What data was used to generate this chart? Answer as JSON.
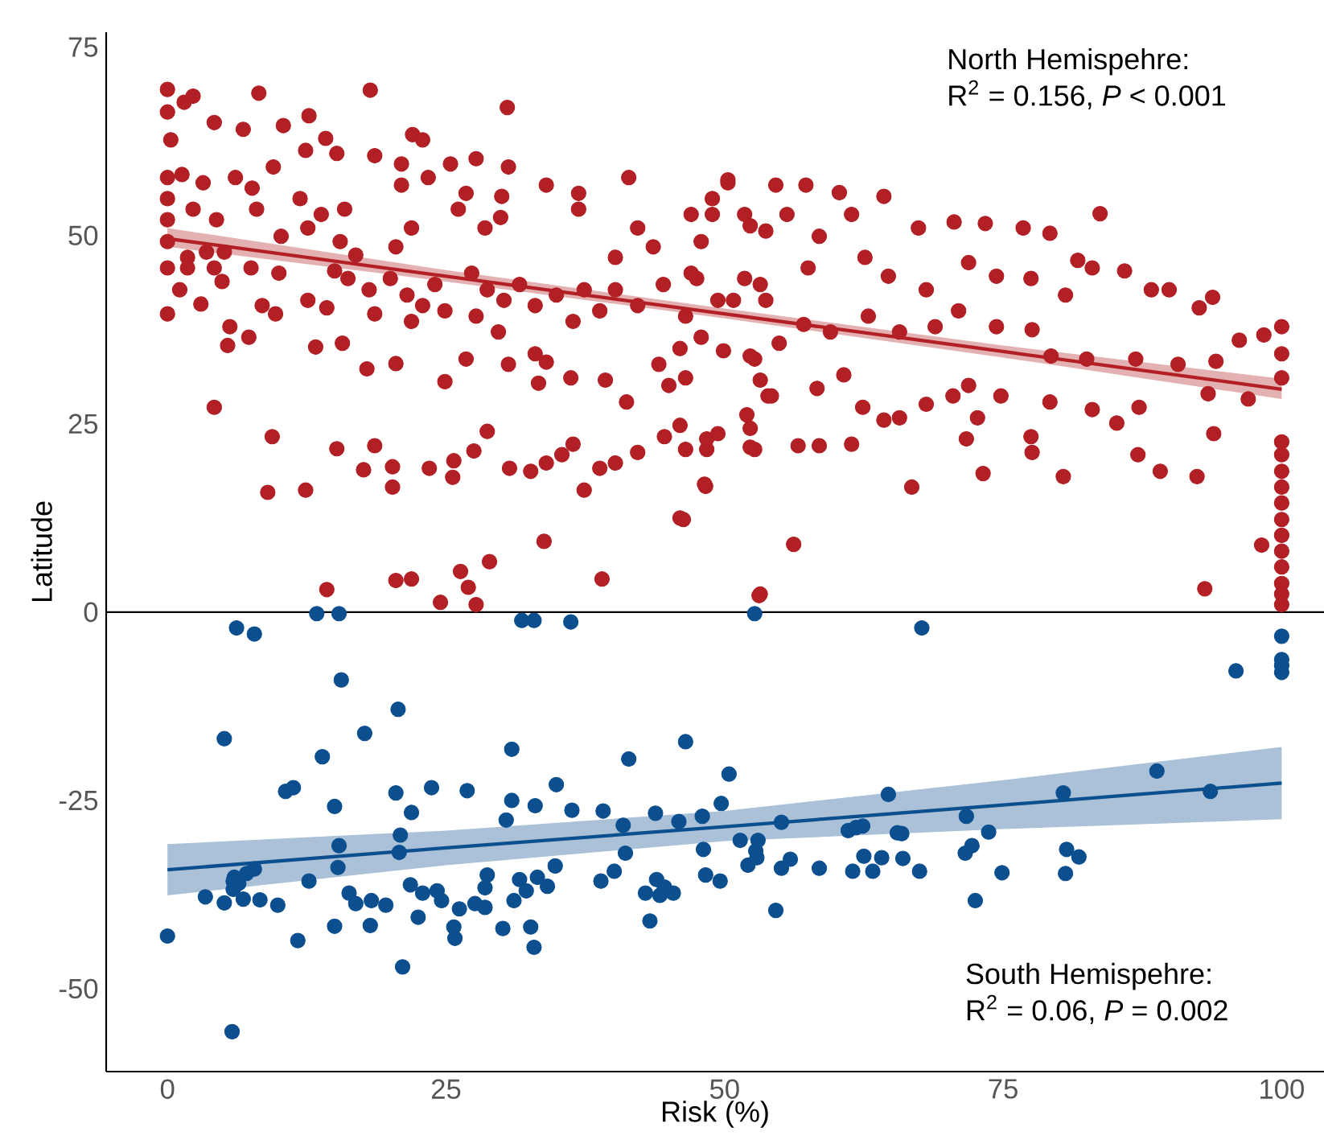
{
  "chart_data": {
    "type": "scatter",
    "xlabel": "Risk (%)",
    "ylabel": "Latitude",
    "marker": "circle",
    "xlim": [
      -5.5,
      103.8
    ],
    "ylim": [
      -61,
      77
    ],
    "xticks": [
      0,
      25,
      50,
      75,
      100
    ],
    "yticks": [
      -50,
      -25,
      0,
      25,
      50,
      75
    ],
    "ref_lines": [
      {
        "axis": "y",
        "value": 0,
        "color": "#000000"
      }
    ],
    "annotations": [
      "North Hemispehre:",
      "R$^{2}$ = 0.156, *P* < 0.001",
      "South Hemispehre:",
      "R$^{2}$ = 0.06, *P* = 0.002"
    ],
    "series": [
      {
        "color": "#b21f24",
        "x": [
          0,
          0,
          1.5,
          2.3,
          8.2,
          18.2,
          30.5,
          0.3,
          4.2,
          6.8,
          10.4,
          12.7,
          14.2,
          22,
          22.9,
          0,
          0,
          0,
          0,
          0,
          0,
          1.3,
          3.2,
          6.1,
          7.6,
          9.5,
          12.4,
          15.2,
          18.6,
          21,
          25.4,
          27.7,
          30.6,
          34,
          36.9,
          41.4,
          2.3,
          4.4,
          8,
          11.9,
          13.8,
          15.9,
          21,
          23.4,
          26.8,
          30,
          26.1,
          21.9,
          28.5,
          29.9,
          36.9,
          42.2,
          1.8,
          3.5,
          5.1,
          1.8,
          4.2,
          4.9,
          7.5,
          10,
          12.6,
          10.2,
          15.5,
          20.5,
          16.9,
          1.1,
          3,
          8.5,
          9.7,
          12.6,
          14.3,
          15,
          16.2,
          18.1,
          18.6,
          20,
          21.5,
          22.9,
          21.9,
          24,
          24.9,
          27.3,
          28.7,
          30.2,
          27.7,
          29.7,
          31.6,
          33,
          34.9,
          36.4,
          37.4,
          38.8,
          40.2,
          42.2,
          44.5,
          46.5,
          47.5,
          49.4,
          51.8,
          53.7,
          47,
          48.9,
          50.3,
          51.8,
          53.7,
          47.9,
          40.2,
          43.6,
          5.6,
          5.4,
          7.3,
          13.3,
          15.7,
          17.9,
          20.5,
          24.9,
          26.8,
          30.6,
          33,
          34,
          33.3,
          36.2,
          39.3,
          41.2,
          44.1,
          45,
          46.5,
          52.7,
          53.9,
          4.2,
          9.4,
          9,
          12.4,
          15.2,
          18.6,
          17.6,
          20.2,
          20.2,
          23.5,
          25.7,
          25.6,
          27.5,
          28.7,
          30.7,
          32.6,
          34,
          35.4,
          36.4,
          37.4,
          38.8,
          40.2,
          42.2,
          44.6,
          46,
          46.5,
          48.4,
          49.4,
          46,
          48.3,
          52,
          52.7,
          33.8,
          14.3,
          20.5,
          21.9,
          24.5,
          26.3,
          27,
          27.7,
          28.9,
          39,
          53.2,
          50.3,
          54.6,
          57.3,
          60.3,
          64.3,
          70.6,
          73.4,
          76.8,
          83.7,
          48.9,
          52.3,
          55.6,
          58.5,
          61.4,
          67.4,
          79.2,
          81.7,
          85.9,
          47,
          50.8,
          53.2,
          57.5,
          62.6,
          64.7,
          68.1,
          71.9,
          74.4,
          77.5,
          80.6,
          83,
          88.3,
          89.9,
          93.8,
          92.6,
          46,
          47.9,
          49.9,
          52.3,
          54.9,
          57.1,
          59.5,
          62.9,
          65.7,
          68.9,
          71,
          74.4,
          77.6,
          79.3,
          82.5,
          86.9,
          90.7,
          96.2,
          98.4,
          100,
          100,
          100,
          94.1,
          97,
          93.4,
          53.2,
          54.2,
          58.3,
          60.7,
          62.4,
          64.3,
          65.7,
          68.1,
          70.5,
          71.9,
          72.7,
          74.8,
          79.2,
          83,
          87.2,
          85.2,
          52.3,
          56.6,
          58.5,
          61.4,
          48.4,
          52.3,
          71.7,
          77.5,
          77.6,
          87.1,
          89.1,
          92.4,
          93.9,
          73.2,
          80.4,
          66.8,
          48.2,
          46.3,
          56.2,
          53.1,
          93.1,
          98.2,
          100,
          100,
          100,
          100,
          100,
          100,
          100,
          100,
          100,
          100,
          100,
          100
        ],
        "values": [
          69.4,
          66.4,
          67.7,
          68.5,
          68.9,
          69.3,
          67,
          62.7,
          65,
          64.1,
          64.6,
          65.9,
          62.9,
          63.4,
          62.7,
          57.7,
          54.9,
          52.1,
          49.2,
          45.7,
          39.6,
          58.1,
          57,
          57.7,
          56.3,
          59.1,
          61.3,
          60.9,
          60.6,
          59.5,
          59.5,
          60.2,
          59.1,
          56.7,
          55.6,
          57.7,
          53.5,
          52.1,
          53.5,
          54.9,
          52.8,
          53.5,
          56.7,
          57.7,
          55.6,
          55.2,
          53.5,
          51,
          51,
          52.4,
          53.5,
          51,
          47.1,
          47.8,
          47.8,
          45.7,
          45.7,
          43.9,
          45.7,
          45,
          51,
          49.9,
          49.2,
          48.5,
          47.4,
          42.8,
          40.9,
          40.7,
          39.6,
          41.4,
          40.4,
          45.3,
          44.3,
          42.8,
          39.6,
          44.3,
          42.1,
          40.7,
          38.6,
          43.5,
          40,
          45,
          42.8,
          41.4,
          39.3,
          37.2,
          43.5,
          40.7,
          42.1,
          38.6,
          42.8,
          40,
          42.8,
          40.7,
          43.5,
          39.3,
          44.3,
          41.4,
          44.3,
          41.4,
          52.8,
          54.9,
          57,
          52.8,
          50.6,
          49.2,
          47.1,
          48.5,
          37.9,
          35.4,
          36.5,
          35.2,
          35.7,
          32.3,
          33,
          30.6,
          33.6,
          32.9,
          34.3,
          33.2,
          30.4,
          31.1,
          30.8,
          27.9,
          32.9,
          30.1,
          31.1,
          33.6,
          28.7,
          27.2,
          23.3,
          15.9,
          16.2,
          21.7,
          22.1,
          18.9,
          19.3,
          16.6,
          19.1,
          20.1,
          17.9,
          21.4,
          24,
          19.1,
          18.7,
          19.8,
          20.9,
          22.3,
          16.2,
          19.1,
          19.8,
          21.2,
          23.3,
          24.8,
          21.6,
          21.6,
          23.7,
          12.5,
          16.7,
          26.2,
          21.6,
          9.4,
          3,
          4.2,
          4.4,
          1.3,
          5.4,
          3.3,
          1,
          6.7,
          4.4,
          2.4,
          57.4,
          56.7,
          56.7,
          55.7,
          55.2,
          51.8,
          51.6,
          51,
          52.9,
          52.8,
          51.3,
          52.8,
          49.9,
          52.8,
          51,
          50.3,
          46.7,
          45.3,
          45,
          41.4,
          43.5,
          45.7,
          47.1,
          44.6,
          42.8,
          46.4,
          44.6,
          44.3,
          42.1,
          45.7,
          42.8,
          42.8,
          41.8,
          40.4,
          35,
          36.5,
          34.7,
          34,
          35.7,
          38.2,
          37.2,
          39.3,
          37.2,
          37.9,
          40,
          37.9,
          37.5,
          34,
          33.6,
          33.6,
          32.9,
          36.1,
          36.8,
          37.9,
          34.3,
          31.1,
          33.3,
          28.3,
          29,
          30.8,
          28.7,
          29.7,
          31.5,
          27.2,
          25.5,
          25.8,
          27.6,
          28.7,
          30.1,
          25.8,
          28.7,
          27.9,
          26.9,
          27.2,
          25.1,
          24.4,
          22.1,
          22.1,
          22.3,
          23,
          21.9,
          23,
          23.3,
          21.2,
          20.9,
          18.7,
          18,
          23.7,
          18.4,
          18,
          16.6,
          17,
          12.3,
          9,
          2.2,
          3.1,
          8.9,
          22.6,
          20.9,
          18.7,
          16.6,
          14.5,
          12.3,
          10.2,
          8.1,
          6,
          3.8,
          2.4,
          1
        ]
      },
      {
        "color": "#0c4f8f",
        "x": [
          0,
          6.2,
          7.8,
          13.4,
          15.4,
          15.6,
          5.1,
          10.6,
          11.3,
          13.9,
          15,
          15.4,
          15.3,
          12.7,
          17.7,
          20.7,
          20.5,
          21.9,
          20.9,
          20.8,
          5.8,
          3.4,
          5.1,
          6,
          7.1,
          7.8,
          6.8,
          8.3,
          9.9,
          11.7,
          15,
          16.3,
          16.9,
          18.3,
          19.6,
          18.2,
          21.1,
          21.8,
          22.5,
          22.9,
          24.2,
          24.6,
          25.7,
          25.8,
          26.2,
          23.7,
          26.9,
          27.6,
          28.5,
          28.7,
          28.5,
          30.1,
          30.4,
          30.9,
          30.9,
          31.1,
          31.6,
          32.2,
          32.6,
          32.9,
          33,
          33.2,
          34.1,
          34.8,
          34.9,
          36.3,
          38.9,
          39.1,
          40.1,
          40.9,
          41.1,
          41.4,
          42.9,
          43.3,
          43.8,
          43.9,
          44.2,
          44.6,
          45.4,
          45.9,
          46.5,
          48,
          48.1,
          48.3,
          49.6,
          49.7,
          50.4,
          51.4,
          52.1,
          52.8,
          53,
          52.9,
          54.6,
          55.1,
          55.1,
          55.9,
          58.5,
          61.1,
          61.5,
          61.8,
          62.4,
          62.5,
          63.3,
          64.1,
          64.7,
          65.5,
          65.9,
          66,
          67.5,
          67.7,
          71.7,
          71.6,
          72.2,
          72.5,
          73.7,
          74.9,
          80.4,
          80.7,
          80.6,
          81.8,
          88.8,
          93.6,
          95.9,
          100,
          100,
          100,
          100,
          36.2,
          31.8,
          32.9,
          52.7,
          5.9,
          6.4,
          5.9
        ],
        "values": [
          -43,
          -2.1,
          -2.9,
          -0.2,
          -0.2,
          -9,
          -16.8,
          -23.8,
          -23.3,
          -19.2,
          -25.8,
          -31,
          -33.9,
          -35.7,
          -16.1,
          -12.9,
          -24,
          -26.6,
          -29.6,
          -31.9,
          -55.7,
          -37.8,
          -38.6,
          -35.2,
          -34.7,
          -34.1,
          -38.1,
          -38.2,
          -38.9,
          -43.6,
          -41.7,
          -37.3,
          -38.7,
          -38.3,
          -38.9,
          -41.6,
          -47.1,
          -36.2,
          -40.5,
          -37.3,
          -37,
          -38.3,
          -41.8,
          -43.3,
          -39.4,
          -23.3,
          -23.7,
          -38.7,
          -36.6,
          -34.9,
          -39.2,
          -42,
          -27.6,
          -18.2,
          -25,
          -38.3,
          -35.5,
          -37,
          -41.8,
          -44.5,
          -25.7,
          -35.2,
          -36.4,
          -33.7,
          -22.9,
          -26.3,
          -35.7,
          -26.4,
          -34.4,
          -28.3,
          -32,
          -19.5,
          -37.3,
          -41,
          -26.7,
          -35.5,
          -37.6,
          -36.5,
          -37.3,
          -27.8,
          -17.2,
          -27.1,
          -31.5,
          -34.9,
          -35.7,
          -25.4,
          -21.5,
          -30.3,
          -33.6,
          -31.7,
          -30.3,
          -32.6,
          -39.6,
          -27.9,
          -34,
          -32.8,
          -34,
          -29,
          -34.4,
          -28.6,
          -28.4,
          -32.4,
          -34.4,
          -32.6,
          -24.2,
          -29.3,
          -29.4,
          -32.7,
          -34.4,
          -2.1,
          -27.1,
          -32,
          -31,
          -38.3,
          -29.2,
          -34.6,
          -24,
          -31.5,
          -34.7,
          -32.5,
          -21.1,
          -23.8,
          -7.8,
          -3.2,
          -6.3,
          -7.1,
          -8,
          -1.3,
          -1.1,
          -1.1,
          -0.2,
          -35.7,
          -36,
          -36.8
        ]
      },
      {
        "type": "line",
        "marker": "none",
        "color": "#b21f24",
        "x": [
          0,
          25,
          50,
          75,
          100
        ],
        "values": [
          49.6,
          44.6,
          39.6,
          34.6,
          29.6
        ],
        "lower": [
          48.5,
          43.9,
          39.0,
          33.8,
          28.3
        ],
        "upper": [
          51.0,
          45.4,
          40.3,
          35.4,
          31.0
        ]
      },
      {
        "type": "line",
        "marker": "none",
        "color": "#0c4f8f",
        "x": [
          0,
          25,
          50,
          75,
          100
        ],
        "values": [
          -34.2,
          -31.3,
          -28.5,
          -25.6,
          -22.7
        ],
        "lower": [
          -37.6,
          -33.6,
          -30.4,
          -28.8,
          -27.5
        ],
        "upper": [
          -30.8,
          -29.0,
          -26.4,
          -22.3,
          -17.9
        ]
      }
    ]
  }
}
